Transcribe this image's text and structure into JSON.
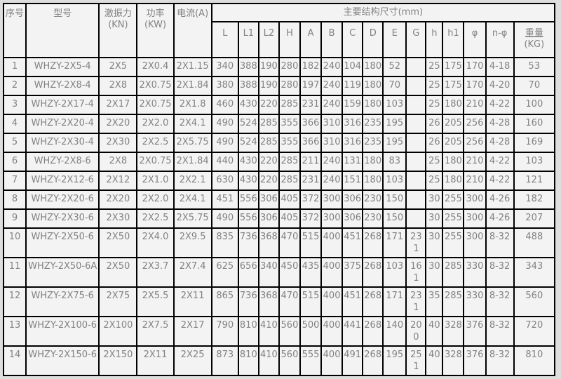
{
  "colors": {
    "page_background": "#dedede",
    "cell_background": "#f3f3f3",
    "grid_border": "#000000",
    "text": "#828282"
  },
  "table": {
    "header": {
      "no": "序号",
      "model": "型号",
      "force_line1": "激振力",
      "force_line2": "(KN)",
      "power_line1": "功率",
      "power_line2": "(KW)",
      "current": "电流(A)",
      "dims_title": "主要结构尺寸(mm)",
      "dim_columns": [
        "L",
        "L1",
        "L2",
        "H",
        "A",
        "B",
        "C",
        "D",
        "E",
        "G",
        "h",
        "h1",
        "φ",
        "n-φ"
      ],
      "weight_line1": "重量",
      "weight_line2": "(KG)"
    },
    "rows": [
      [
        "1",
        "WHZY-2X5-4",
        "2X5",
        "2X0.4",
        "2X1.15",
        "340",
        "388",
        "190",
        "280",
        "182",
        "240",
        "104",
        "180",
        "52",
        "",
        "25",
        "175",
        "170",
        "4-18",
        "53"
      ],
      [
        "2",
        "WHZY-2X8-4",
        "2X8",
        "2X0.75",
        "2X1.84",
        "380",
        "388",
        "190",
        "280",
        "197",
        "240",
        "119",
        "180",
        "70",
        "",
        "25",
        "175",
        "170",
        "4-20",
        "70"
      ],
      [
        "3",
        "WHZY-2X17-4",
        "2X17",
        "2X0.75",
        "2X1.8",
        "460",
        "430",
        "220",
        "285",
        "231",
        "240",
        "159",
        "180",
        "103",
        "",
        "25",
        "180",
        "210",
        "4-22",
        "100"
      ],
      [
        "4",
        "WHZY-2X20-4",
        "2X20",
        "2X2.0",
        "2X4.1",
        "490",
        "524",
        "285",
        "355",
        "366",
        "310",
        "316",
        "235",
        "195",
        "",
        "26",
        "205",
        "256",
        "4-28",
        "160"
      ],
      [
        "5",
        "WHZY-2X30-4",
        "2X30",
        "2X2.5",
        "2X5.75",
        "490",
        "524",
        "285",
        "355",
        "366",
        "310",
        "316",
        "235",
        "195",
        "",
        "26",
        "205",
        "256",
        "4-28",
        "169"
      ],
      [
        "6",
        "WHZY-2X8-6",
        "2X8",
        "2X0.75",
        "2X1.84",
        "440",
        "430",
        "220",
        "285",
        "211",
        "240",
        "131",
        "180",
        "83",
        "",
        "25",
        "180",
        "210",
        "4-22",
        "103"
      ],
      [
        "7",
        "WHZY-2X12-6",
        "2X12",
        "2X1.0",
        "2X2.1",
        "630",
        "430",
        "220",
        "285",
        "231",
        "240",
        "151",
        "180",
        "103",
        "",
        "25",
        "180",
        "210",
        "4-22",
        "121"
      ],
      [
        "8",
        "WHZY-2X20-6",
        "2X20",
        "2X2.0",
        "2X4.1",
        "451",
        "556",
        "306",
        "405",
        "372",
        "300",
        "306",
        "230",
        "150",
        "",
        "30",
        "255",
        "300",
        "4-26",
        "182"
      ],
      [
        "9",
        "WHZY-2X30-6",
        "2X30",
        "2X2.5",
        "2X5.75",
        "490",
        "556",
        "306",
        "405",
        "372",
        "300",
        "306",
        "230",
        "150",
        "",
        "30",
        "255",
        "300",
        "4-26",
        "207"
      ],
      [
        "10",
        "WHZY-2X50-6",
        "2X50",
        "2X4.0",
        "2X9.5",
        "835",
        "736",
        "368",
        "470",
        "515",
        "400",
        "451",
        "268",
        "171",
        "231",
        "30",
        "255",
        "300",
        "8-32",
        "488"
      ],
      [
        "11",
        "WHZY-2X50-6A",
        "2X50",
        "2X3.7",
        "2X7.4",
        "625",
        "656",
        "340",
        "450",
        "435",
        "400",
        "375",
        "268",
        "103",
        "161",
        "30",
        "285",
        "330",
        "8-32",
        "343"
      ],
      [
        "12",
        "WHZY-2X75-6",
        "2X75",
        "2X5.5",
        "2X11",
        "865",
        "736",
        "368",
        "470",
        "515",
        "400",
        "451",
        "268",
        "171",
        "231",
        "35",
        "285",
        "330",
        "8-32",
        "560"
      ],
      [
        "13",
        "WHZY-2X100-6",
        "2X100",
        "2X7.5",
        "2X17",
        "790",
        "810",
        "410",
        "560",
        "500",
        "400",
        "441",
        "268",
        "140",
        "200",
        "40",
        "328",
        "376",
        "8-32",
        "720"
      ],
      [
        "14",
        "WHZY-2X150-6",
        "2X150",
        "2X11",
        "2X25",
        "873",
        "810",
        "410",
        "560",
        "555",
        "400",
        "491",
        "268",
        "195",
        "251",
        "40",
        "328",
        "376",
        "8-32",
        "810"
      ]
    ]
  }
}
